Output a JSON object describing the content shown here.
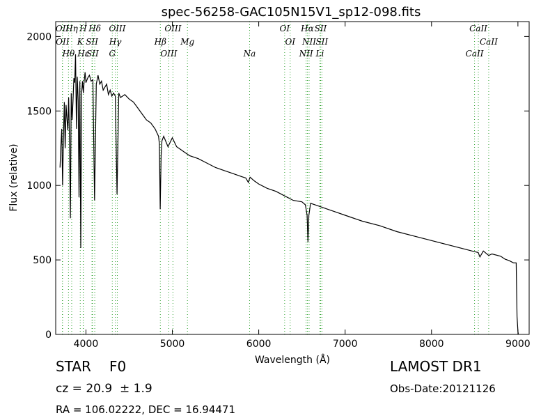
{
  "info": {
    "class_label": "STAR",
    "subclass": "F0",
    "cz_text": "cz = 20.9  ± 1.9",
    "coords": "RA = 106.02222, DEC = 16.94471",
    "survey": "LAMOST DR1",
    "obs_date": "Obs-Date:20121126"
  },
  "colors": {
    "line_marker": "#2ca02c",
    "spectrum": "#000000"
  },
  "chart_data": {
    "type": "line",
    "title": "spec-56258-GAC105N15V1_sp12-098.fits",
    "xlabel": "Wavelength (Å)",
    "ylabel": "Flux (relative)",
    "xlim": [
      3650,
      9130
    ],
    "ylim": [
      0,
      2100
    ],
    "xticks": [
      4000,
      5000,
      6000,
      7000,
      8000,
      9000
    ],
    "xtick_labels": [
      "4000",
      "5000",
      "6000",
      "7000",
      "8000",
      "9000"
    ],
    "yticks": [
      0,
      500,
      1000,
      1500,
      2000
    ],
    "ytick_labels": [
      "0",
      "500",
      "1000",
      "1500",
      "2000"
    ],
    "grid": false,
    "series": [
      {
        "x": [
          3700,
          3710,
          3720,
          3730,
          3740,
          3750,
          3760,
          3770,
          3780,
          3790,
          3800,
          3810,
          3820,
          3830,
          3840,
          3850,
          3860,
          3870,
          3880,
          3890,
          3900,
          3910,
          3920,
          3930,
          3940,
          3950,
          3960,
          3970,
          3980,
          3990,
          4000,
          4020,
          4040,
          4060,
          4080,
          4100,
          4120,
          4140,
          4160,
          4180,
          4200,
          4220,
          4240,
          4260,
          4280,
          4300,
          4320,
          4340,
          4360,
          4380,
          4400,
          4450,
          4500,
          4550,
          4600,
          4650,
          4700,
          4750,
          4800,
          4840,
          4850,
          4860,
          4870,
          4880,
          4900,
          4950,
          5000,
          5050,
          5100,
          5150,
          5200,
          5300,
          5400,
          5500,
          5600,
          5700,
          5800,
          5850,
          5880,
          5890,
          5900,
          5950,
          6000,
          6100,
          6200,
          6300,
          6400,
          6500,
          6540,
          6560,
          6570,
          6580,
          6600,
          6700,
          6800,
          6900,
          7000,
          7200,
          7400,
          7600,
          7800,
          8000,
          8200,
          8400,
          8500,
          8540,
          8560,
          8600,
          8662,
          8700,
          8800,
          8850,
          8900,
          8950,
          8980,
          8990,
          9000,
          9005
        ],
        "y": [
          1120,
          1260,
          1380,
          1000,
          1340,
          1560,
          1250,
          1540,
          1450,
          1370,
          1590,
          1290,
          780,
          1620,
          1440,
          1560,
          1720,
          1690,
          1880,
          1380,
          1730,
          1570,
          920,
          1700,
          580,
          1620,
          1700,
          1620,
          1700,
          1760,
          1690,
          1720,
          1740,
          1700,
          1710,
          900,
          1680,
          1740,
          1680,
          1700,
          1640,
          1660,
          1680,
          1610,
          1640,
          1600,
          1620,
          1600,
          940,
          1620,
          1590,
          1610,
          1580,
          1560,
          1520,
          1480,
          1440,
          1420,
          1380,
          1330,
          1280,
          840,
          1200,
          1300,
          1330,
          1260,
          1320,
          1260,
          1240,
          1220,
          1200,
          1180,
          1150,
          1120,
          1100,
          1080,
          1060,
          1050,
          1020,
          1040,
          1055,
          1030,
          1010,
          980,
          960,
          930,
          900,
          890,
          870,
          800,
          620,
          800,
          880,
          860,
          840,
          820,
          800,
          760,
          730,
          690,
          660,
          630,
          600,
          570,
          555,
          550,
          520,
          560,
          530,
          540,
          525,
          505,
          495,
          480,
          480,
          120,
          20,
          0
        ],
        "color": "#000000"
      }
    ],
    "annotations": [
      {
        "label": "OII",
        "x": 3727
      },
      {
        "label": "OII",
        "x": 3729
      },
      {
        "label": "Hθ",
        "x": 3798
      },
      {
        "label": "Hη",
        "x": 3835
      },
      {
        "label": "K",
        "x": 3934
      },
      {
        "label": "Hε",
        "x": 3970
      },
      {
        "label": "H",
        "x": 3968
      },
      {
        "label": "SII",
        "x": 4070
      },
      {
        "label": "SII",
        "x": 4076
      },
      {
        "label": "Hδ",
        "x": 4102
      },
      {
        "label": "Hγ",
        "x": 4340
      },
      {
        "label": "G",
        "x": 4305
      },
      {
        "label": "OIII",
        "x": 4363
      },
      {
        "label": "Hβ",
        "x": 4861
      },
      {
        "label": "OIII",
        "x": 4959
      },
      {
        "label": "OIII",
        "x": 5007
      },
      {
        "label": "Mg",
        "x": 5175
      },
      {
        "label": "Na",
        "x": 5894
      },
      {
        "label": "OI",
        "x": 6300
      },
      {
        "label": "OI",
        "x": 6364
      },
      {
        "label": "NII",
        "x": 6548
      },
      {
        "label": "Hα",
        "x": 6563
      },
      {
        "label": "NII",
        "x": 6583
      },
      {
        "label": "Li",
        "x": 6708
      },
      {
        "label": "SII",
        "x": 6716
      },
      {
        "label": "SII",
        "x": 6731
      },
      {
        "label": "CaII",
        "x": 8498
      },
      {
        "label": "CaII",
        "x": 8542
      },
      {
        "label": "CaII",
        "x": 8662
      }
    ]
  }
}
